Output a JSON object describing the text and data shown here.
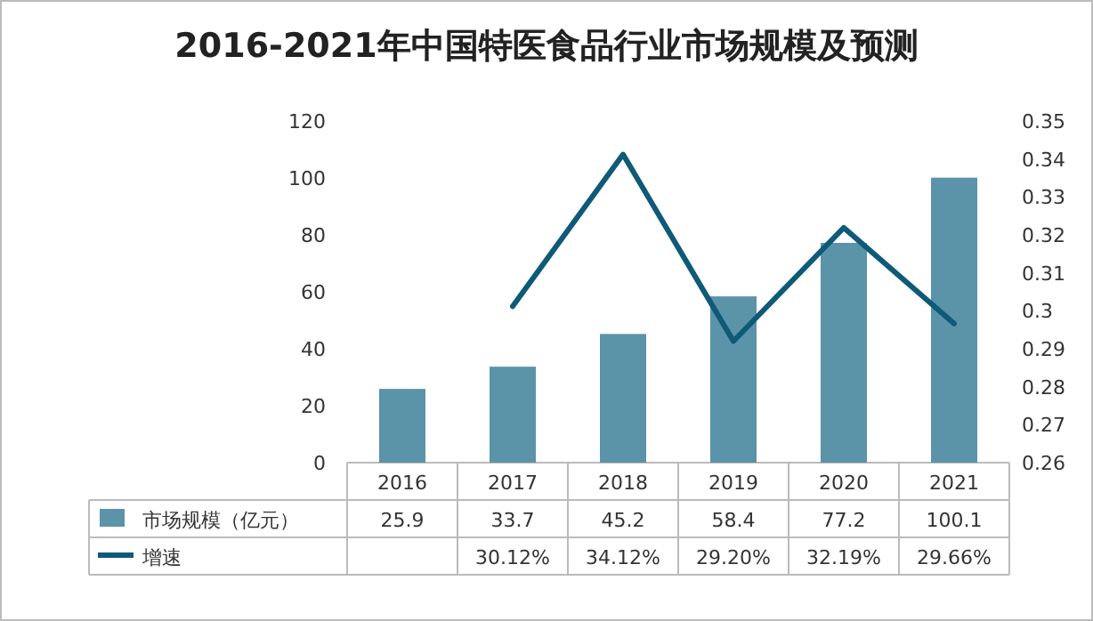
{
  "chart_data": {
    "type": "bar",
    "title": "2016-2021年中国特医食品行业市场规模及预测",
    "categories": [
      "2016",
      "2017",
      "2018",
      "2019",
      "2020",
      "2021"
    ],
    "series": [
      {
        "name": "市场规模（亿元）",
        "color": "#5b93a8",
        "values": [
          25.9,
          33.7,
          45.2,
          58.4,
          77.2,
          100.1
        ]
      },
      {
        "name": "增速",
        "type": "line",
        "axis": "y2",
        "color": "#0e5a78",
        "values": [
          null,
          0.3012,
          0.3412,
          0.292,
          0.3219,
          0.2966
        ],
        "value_labels": [
          null,
          "30.12%",
          "34.12%",
          "29.20%",
          "32.19%",
          "29.66%"
        ]
      }
    ],
    "ylim": [
      0,
      120
    ],
    "yticks": [
      0,
      20,
      40,
      60,
      80,
      100,
      120
    ],
    "y2lim": [
      0.26,
      0.35
    ],
    "y2ticks": [
      0.26,
      0.27,
      0.28,
      0.29,
      0.3,
      0.31,
      0.32,
      0.33,
      0.34,
      0.35
    ],
    "data_labels": true,
    "legend": "bottom"
  }
}
